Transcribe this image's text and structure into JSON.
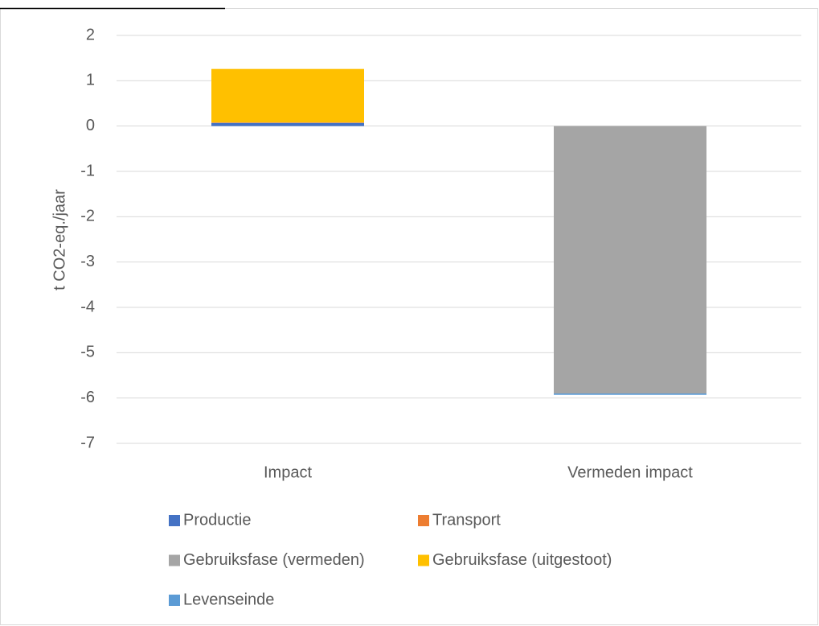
{
  "chart_data": {
    "type": "stacked_bar",
    "y_label": "t CO2-eq./jaar",
    "categories": [
      "Impact",
      "Vermeden impact"
    ],
    "series": [
      {
        "name": "Productie",
        "color": "#4472c4",
        "values": [
          0.07,
          0
        ]
      },
      {
        "name": "Transport",
        "color": "#ed7d31",
        "values": [
          0.01,
          0
        ]
      },
      {
        "name": "Gebruiksfase (vermeden)",
        "color": "#a5a5a5",
        "values": [
          0,
          -5.9
        ]
      },
      {
        "name": "Gebruiksfase (uitgestoot)",
        "color": "#ffc000",
        "values": [
          1.18,
          0
        ]
      },
      {
        "name": "Levenseinde",
        "color": "#5b9bd5",
        "values": [
          0,
          -0.03
        ]
      }
    ],
    "ylim": [
      -7,
      2
    ],
    "yticks": [
      2,
      1,
      0,
      -1,
      -2,
      -3,
      -4,
      -5,
      -6,
      -7
    ],
    "grid": true
  }
}
